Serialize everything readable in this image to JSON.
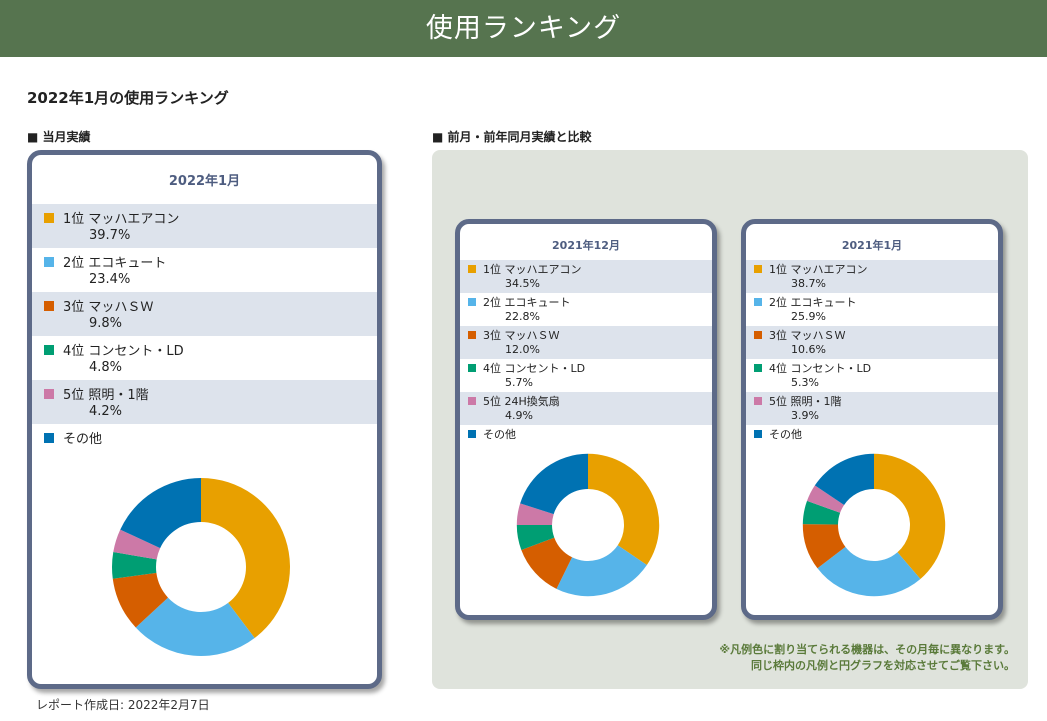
{
  "header": {
    "title": "使用ランキング"
  },
  "page_title": "2022年1月の使用ランキング",
  "sections": {
    "current": "■ 当月実績",
    "compare": "■ 前月・前年同月実績と比較"
  },
  "colors": {
    "card_border": "#5d6a88",
    "header_bg": "#56744f",
    "row_shade": "#dde3ec",
    "panel_bg": "#dfe3dc",
    "series": [
      "#e8a000",
      "#56b4e9",
      "#d55e00",
      "#009e73",
      "#cc79a7",
      "#0072b2"
    ]
  },
  "cards": [
    {
      "title": "2022年1月",
      "items": [
        {
          "name": "1位 マッハエアコン",
          "pct": "39.7%",
          "value": 39.7
        },
        {
          "name": "2位 エコキュート",
          "pct": "23.4%",
          "value": 23.4
        },
        {
          "name": "3位 マッハＳＷ",
          "pct": "9.8%",
          "value": 9.8
        },
        {
          "name": "4位 コンセント・LD",
          "pct": "4.8%",
          "value": 4.8
        },
        {
          "name": "5位 照明・1階",
          "pct": "4.2%",
          "value": 4.2
        },
        {
          "name": "その他",
          "pct": "",
          "value": 18.1
        }
      ]
    },
    {
      "title": "2021年12月",
      "items": [
        {
          "name": "1位 マッハエアコン",
          "pct": "34.5%",
          "value": 34.5
        },
        {
          "name": "2位 エコキュート",
          "pct": "22.8%",
          "value": 22.8
        },
        {
          "name": "3位 マッハＳＷ",
          "pct": "12.0%",
          "value": 12.0
        },
        {
          "name": "4位 コンセント・LD",
          "pct": "5.7%",
          "value": 5.7
        },
        {
          "name": "5位 24H換気扇",
          "pct": "4.9%",
          "value": 4.9
        },
        {
          "name": "その他",
          "pct": "",
          "value": 20.1
        }
      ]
    },
    {
      "title": "2021年1月",
      "items": [
        {
          "name": "1位 マッハエアコン",
          "pct": "38.7%",
          "value": 38.7
        },
        {
          "name": "2位 エコキュート",
          "pct": "25.9%",
          "value": 25.9
        },
        {
          "name": "3位 マッハＳＷ",
          "pct": "10.6%",
          "value": 10.6
        },
        {
          "name": "4位 コンセント・LD",
          "pct": "5.3%",
          "value": 5.3
        },
        {
          "name": "5位 照明・1階",
          "pct": "3.9%",
          "value": 3.9
        },
        {
          "name": "その他",
          "pct": "",
          "value": 15.6
        }
      ]
    }
  ],
  "chart_data": [
    {
      "type": "pie",
      "title": "2022年1月",
      "categories": [
        "1位 マッハエアコン",
        "2位 エコキュート",
        "3位 マッハＳＷ",
        "4位 コンセント・LD",
        "5位 照明・1階",
        "その他"
      ],
      "values": [
        39.7,
        23.4,
        9.8,
        4.8,
        4.2,
        18.1
      ]
    },
    {
      "type": "pie",
      "title": "2021年12月",
      "categories": [
        "1位 マッハエアコン",
        "2位 エコキュート",
        "3位 マッハＳＷ",
        "4位 コンセント・LD",
        "5位 24H換気扇",
        "その他"
      ],
      "values": [
        34.5,
        22.8,
        12.0,
        5.7,
        4.9,
        20.1
      ]
    },
    {
      "type": "pie",
      "title": "2021年1月",
      "categories": [
        "1位 マッハエアコン",
        "2位 エコキュート",
        "3位 マッハＳＷ",
        "4位 コンセント・LD",
        "5位 照明・1階",
        "その他"
      ],
      "values": [
        38.7,
        25.9,
        10.6,
        5.3,
        3.9,
        15.6
      ]
    }
  ],
  "note": {
    "line1": "※凡例色に割り当てられる機器は、その月毎に異なります。",
    "line2": "同じ枠内の凡例と円グラフを対応させてご覧下さい。"
  },
  "report_date": "レポート作成日: 2022年2月7日"
}
